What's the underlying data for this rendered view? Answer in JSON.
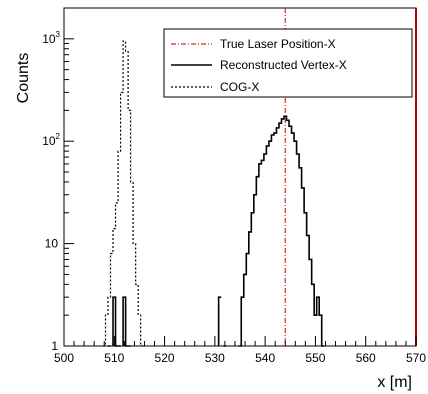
{
  "chart_data": {
    "type": "histogram",
    "title": "",
    "xlabel": "x [m]",
    "ylabel": "Counts",
    "xlim": [
      500,
      570
    ],
    "ylim": [
      1,
      2000
    ],
    "y_scale": "log",
    "x_ticks": [
      500,
      510,
      520,
      530,
      540,
      550,
      560,
      570
    ],
    "x_tick_labels": [
      "500",
      "510",
      "520",
      "530",
      "540",
      "550",
      "560",
      "570"
    ],
    "y_ticks": [
      1,
      10,
      100,
      1000
    ],
    "y_tick_labels": [
      "1",
      "10",
      "10^2",
      "10^3"
    ],
    "grid": false,
    "legend_position": "top-right",
    "vertical_lines": [
      {
        "name": "True Laser Position-X",
        "x": 544,
        "color": "#d62728",
        "style": "dash-dot"
      }
    ],
    "right_marker_line": {
      "x": 570,
      "color": "#c00000"
    },
    "series": [
      {
        "name": "Reconstructed Vertex-X",
        "style": "solid",
        "color": "#000000",
        "points": [
          [
            509,
            1
          ],
          [
            510,
            3
          ],
          [
            510.5,
            1
          ],
          [
            511,
            1
          ],
          [
            512,
            3
          ],
          [
            512.5,
            1
          ],
          [
            513,
            1
          ],
          [
            531,
            3
          ],
          [
            532,
            1
          ],
          [
            535,
            1
          ],
          [
            535.5,
            3
          ],
          [
            536,
            5
          ],
          [
            536.5,
            8
          ],
          [
            537,
            13
          ],
          [
            537.5,
            20
          ],
          [
            538,
            30
          ],
          [
            538.5,
            45
          ],
          [
            539,
            60
          ],
          [
            539.5,
            65
          ],
          [
            540,
            75
          ],
          [
            540.5,
            90
          ],
          [
            541,
            100
          ],
          [
            541.5,
            115
          ],
          [
            542,
            120
          ],
          [
            542.5,
            135
          ],
          [
            543,
            150
          ],
          [
            543.5,
            165
          ],
          [
            544,
            175
          ],
          [
            544.5,
            160
          ],
          [
            545,
            140
          ],
          [
            545.5,
            120
          ],
          [
            546,
            100
          ],
          [
            546.5,
            75
          ],
          [
            547,
            55
          ],
          [
            547.5,
            35
          ],
          [
            548,
            20
          ],
          [
            548.5,
            12
          ],
          [
            549,
            7
          ],
          [
            549.5,
            4
          ],
          [
            550,
            2
          ],
          [
            550.5,
            3
          ],
          [
            551,
            2
          ],
          [
            551.5,
            1
          ]
        ]
      },
      {
        "name": "COG-X",
        "style": "dotted",
        "color": "#000000",
        "points": [
          [
            508,
            1
          ],
          [
            508.5,
            2
          ],
          [
            509,
            3
          ],
          [
            509.5,
            8
          ],
          [
            510,
            14
          ],
          [
            510.5,
            25
          ],
          [
            511,
            80
          ],
          [
            511.5,
            300
          ],
          [
            512,
            950
          ],
          [
            512.5,
            750
          ],
          [
            513,
            200
          ],
          [
            513.5,
            40
          ],
          [
            514,
            10
          ],
          [
            514.5,
            4
          ],
          [
            515,
            2
          ],
          [
            515.5,
            1
          ]
        ]
      }
    ]
  }
}
